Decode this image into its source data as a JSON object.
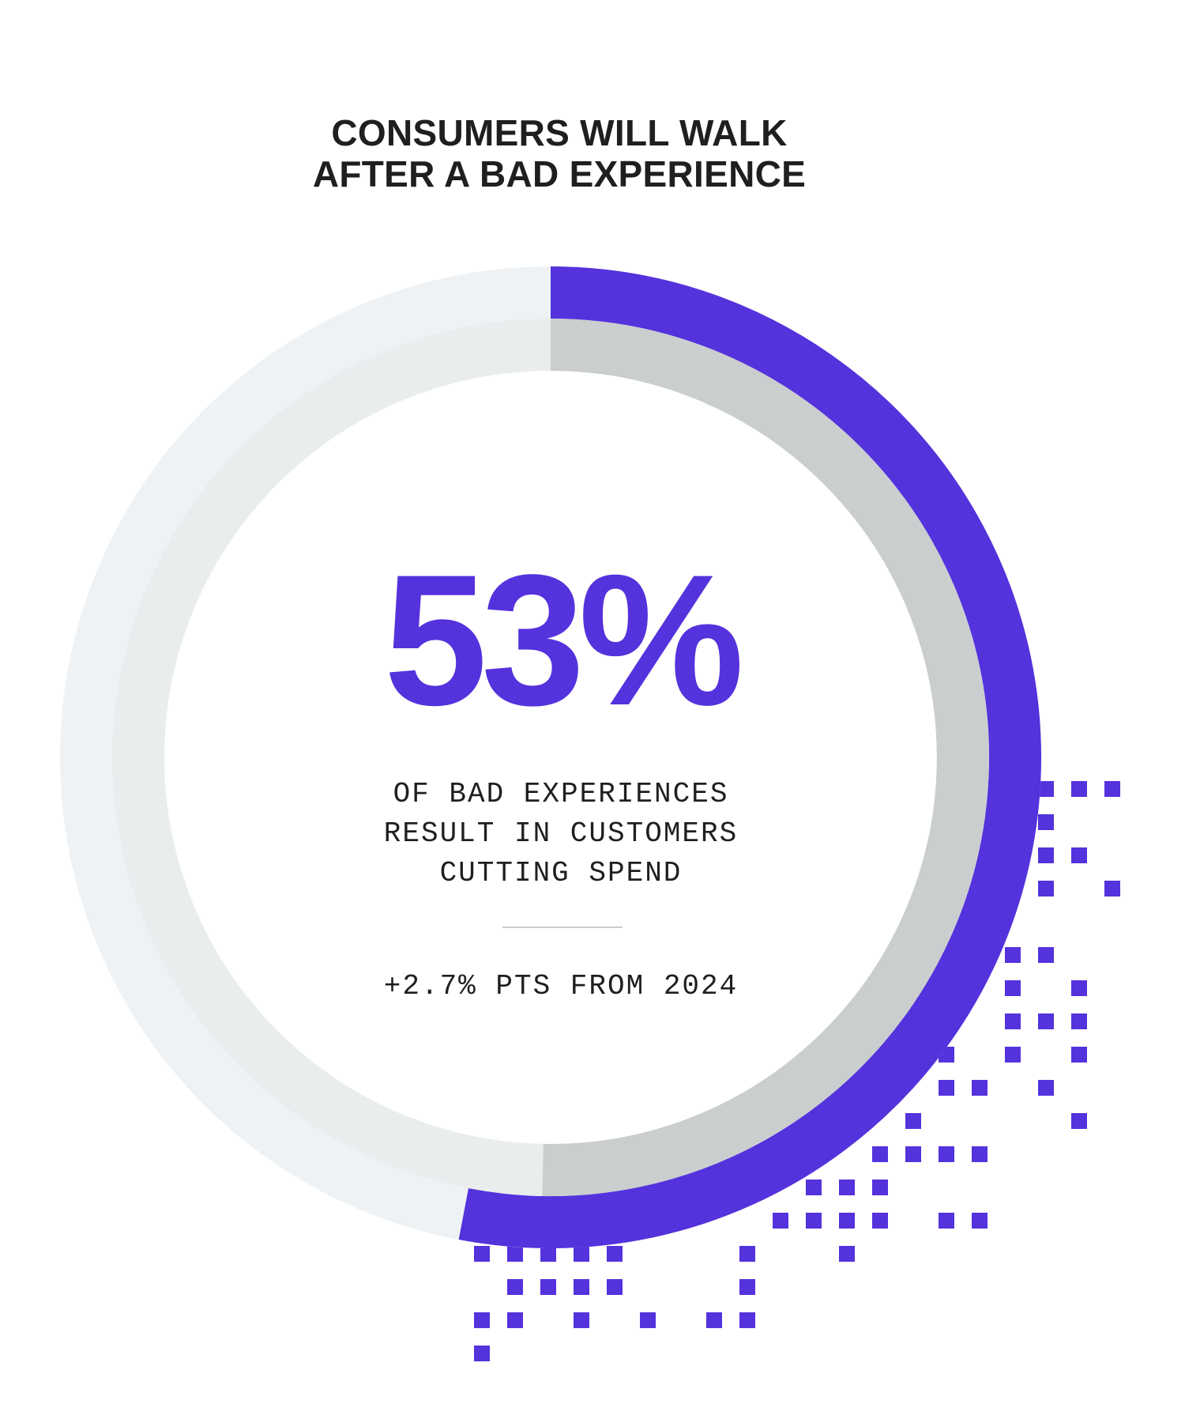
{
  "title": {
    "line1": "CONSUMERS WILL WALK",
    "line2": "AFTER A BAD EXPERIENCE"
  },
  "stat": {
    "value_text": "53%",
    "description_lines": [
      "OF BAD EXPERIENCES",
      "RESULT IN CUSTOMERS",
      "CUTTING SPEND"
    ],
    "change_text": "+2.7% PTS FROM 2024"
  },
  "colors": {
    "accent": "#5432dc",
    "outer_track": "#eef2f4",
    "inner_track": "#e9eded",
    "previous": "#cacecf",
    "text": "#1f1f1f"
  },
  "chart_data": {
    "type": "pie",
    "title": "CONSUMERS WILL WALK AFTER A BAD EXPERIENCE",
    "series": [
      {
        "values": [
          53,
          47
        ]
      },
      {
        "values": [
          50.3,
          49.7
        ]
      }
    ],
    "categories": [
      "cutting spend",
      "remainder"
    ],
    "annotations": [
      "53%",
      "+2.7% PTS FROM 2024"
    ]
  }
}
